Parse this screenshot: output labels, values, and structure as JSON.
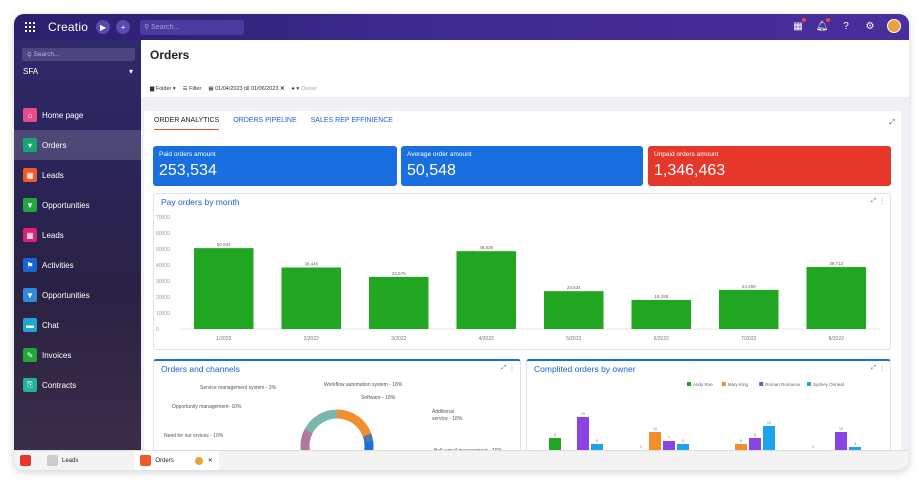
{
  "topbar": {
    "logo": "Creatio",
    "search_placeholder": "Search..."
  },
  "sidebar": {
    "search_placeholder": "Search...",
    "workspace": "SFA",
    "items": [
      {
        "label": "Home page",
        "icon": "home-icon",
        "color": "#e74c8c",
        "glyph": "⌂"
      },
      {
        "label": "Orders",
        "icon": "cart-icon",
        "color": "#17a673",
        "glyph": "▾"
      },
      {
        "label": "Leads",
        "icon": "leads-icon",
        "color": "#f05a28",
        "glyph": "▦"
      },
      {
        "label": "Opportunities",
        "icon": "funnel-icon",
        "color": "#22a83a",
        "glyph": "▼"
      },
      {
        "label": "Leads",
        "icon": "leads-icon",
        "color": "#d6246e",
        "glyph": "▦"
      },
      {
        "label": "Activities",
        "icon": "flag-icon",
        "color": "#1a63d4",
        "glyph": "⚑"
      },
      {
        "label": "Opportunities",
        "icon": "funnel-icon",
        "color": "#2d8bd8",
        "glyph": "▼"
      },
      {
        "label": "Chat",
        "icon": "chat-icon",
        "color": "#1fa4d8",
        "glyph": "▬"
      },
      {
        "label": "Invoices",
        "icon": "invoice-icon",
        "color": "#22a83a",
        "glyph": "✎"
      },
      {
        "label": "Contracts",
        "icon": "contract-icon",
        "color": "#21b29a",
        "glyph": "⎘"
      }
    ]
  },
  "page": {
    "title": "Orders",
    "folder": "Folder",
    "filter": "Filter",
    "date_range": "01/04/2023 till 01/06/2023",
    "owner": "Owner"
  },
  "tabs": [
    "ORDER ANALYTICS",
    "ORDERS PIPELINE",
    "SALES REP EFFINIENCE"
  ],
  "kpis": [
    {
      "label": "Paid orders amount",
      "value": "253,534",
      "color": "#1a6fe0"
    },
    {
      "label": "Average order amount",
      "value": "50,548",
      "color": "#1a6fe0"
    },
    {
      "label": "Unpaid orders amount",
      "value": "1,346,463",
      "color": "#e6382a"
    }
  ],
  "bar_chart": {
    "title": "Pay orders by month"
  },
  "chart_data": [
    {
      "type": "bar",
      "title": "Pay orders by month",
      "ylim": [
        0,
        70000
      ],
      "yticks": [
        "0",
        "10000",
        "20000",
        "30000",
        "40000",
        "50000",
        "60000",
        "70000"
      ],
      "categories": [
        "1/2022",
        "2/2022",
        "3/2022",
        "4/2022",
        "5/2022",
        "6/2022",
        "7/2022",
        "8/2022"
      ],
      "values": [
        50544,
        38445,
        32575,
        48636,
        23634,
        18158,
        24459,
        38712
      ],
      "labels": [
        "50,544",
        "38,445",
        "32,575",
        "48,636",
        "23,634",
        "18,158",
        "24,459",
        "38,712"
      ],
      "color": "#21a621"
    },
    {
      "type": "pie",
      "title": "Orders and channels",
      "labels": [
        "Workflow automation system - 18%",
        "Service management system - 3%",
        "Software - 18%",
        "Opportunity management- 10%",
        "Additional service - 18%",
        "Need for our srvices - 10%",
        "Bulk email management - 16%"
      ],
      "values": [
        18,
        3,
        18,
        10,
        18,
        10,
        16
      ],
      "colors": [
        "#f28e2b",
        "#4e79a7",
        "#1a6fe0",
        "#59a14f",
        "#e15759",
        "#af7aa1",
        "#76b7b2"
      ]
    },
    {
      "type": "bar",
      "title": "Complited orders by owner",
      "series": [
        {
          "name": "Andy Roe",
          "color": "#21a621",
          "values": [
            8,
            4,
            0,
            4
          ]
        },
        {
          "name": "Mary King",
          "color": "#f28e2b",
          "values": [
            0,
            10,
            6,
            0
          ]
        },
        {
          "name": "Roman Romanov",
          "color": "#8a44e6",
          "values": [
            15,
            7,
            8,
            10
          ]
        },
        {
          "name": "Sydney Onneal",
          "color": "#1ca3ec",
          "values": [
            6,
            6,
            12,
            5
          ]
        }
      ]
    }
  ],
  "pie_chart": {
    "title": "Orders and channels"
  },
  "owner_chart": {
    "title": "Complited orders by owner"
  },
  "taskbar": {
    "item1": "Leads",
    "item2": "Orders"
  }
}
